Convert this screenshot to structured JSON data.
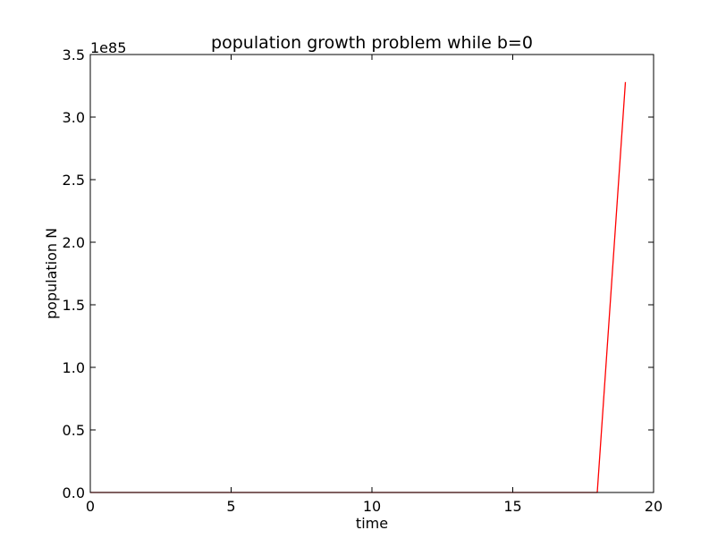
{
  "chart_data": {
    "type": "line",
    "title": "population growth problem while b=0",
    "xlabel": "time",
    "ylabel": "population N",
    "xlim": [
      0,
      20
    ],
    "ylim": [
      0,
      3.5e+85
    ],
    "y_offset_label": "1e85",
    "x_ticks": [
      0,
      5,
      10,
      15,
      20
    ],
    "x_tick_labels": [
      "0",
      "5",
      "10",
      "15",
      "20"
    ],
    "y_ticks": [
      0,
      5e+84,
      1e+85,
      1.5e+85,
      2e+85,
      2.5e+85,
      3e+85,
      3.5e+85
    ],
    "y_tick_labels": [
      "0.0",
      "0.5",
      "1.0",
      "1.5",
      "2.0",
      "2.5",
      "3.0",
      "3.5"
    ],
    "grid": false,
    "series": [
      {
        "color": "#ff0000",
        "x": [
          0,
          1,
          2,
          3,
          4,
          5,
          6,
          7,
          8,
          9,
          10,
          11,
          12,
          13,
          14,
          15,
          16,
          17,
          18,
          19
        ],
        "y": [
          0,
          0,
          0,
          0,
          0,
          0,
          0,
          0,
          0,
          0,
          0,
          0,
          0,
          0,
          0,
          0,
          0,
          0,
          1e+80,
          3.28e+85
        ]
      }
    ]
  }
}
